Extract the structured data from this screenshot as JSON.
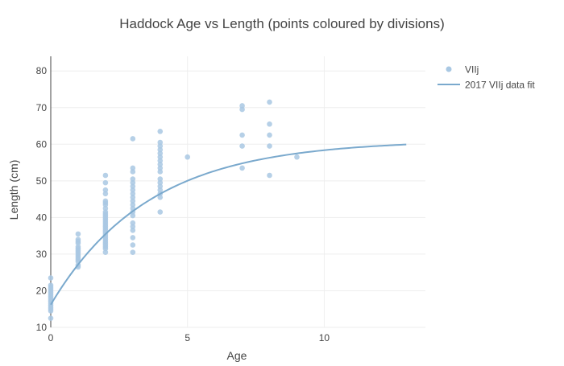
{
  "chart_data": {
    "type": "scatter",
    "title": "Haddock Age vs Length (points coloured by divisions)",
    "xlabel": "Age",
    "ylabel": "Length (cm)",
    "xlim": [
      0,
      13.7
    ],
    "ylim": [
      10,
      84
    ],
    "x_ticks": [
      0,
      5,
      10
    ],
    "y_ticks": [
      10,
      20,
      30,
      40,
      50,
      60,
      70,
      80
    ],
    "grid": true,
    "legend_position": "top-right",
    "colors": {
      "points": "#a9c8e3",
      "line": "#7aa9cd",
      "text": "#444444",
      "grid": "#eeeeee"
    },
    "series": [
      {
        "name": "VIIj",
        "kind": "scatter",
        "points": [
          [
            0,
            12.5
          ],
          [
            0,
            14.5
          ],
          [
            0,
            15
          ],
          [
            0,
            15.5
          ],
          [
            0,
            16
          ],
          [
            0,
            16.5
          ],
          [
            0,
            17
          ],
          [
            0,
            17.5
          ],
          [
            0,
            18
          ],
          [
            0,
            18.5
          ],
          [
            0,
            19
          ],
          [
            0,
            19.5
          ],
          [
            0,
            20
          ],
          [
            0,
            20.5
          ],
          [
            0,
            21
          ],
          [
            0,
            21.5
          ],
          [
            0,
            23.5
          ],
          [
            1,
            26.5
          ],
          [
            1,
            27
          ],
          [
            1,
            28
          ],
          [
            1,
            28.5
          ],
          [
            1,
            29
          ],
          [
            1,
            29.5
          ],
          [
            1,
            30
          ],
          [
            1,
            30.5
          ],
          [
            1,
            31
          ],
          [
            1,
            31.5
          ],
          [
            1,
            32
          ],
          [
            1,
            33
          ],
          [
            1,
            33.5
          ],
          [
            1,
            34
          ],
          [
            1,
            35.5
          ],
          [
            2,
            30.5
          ],
          [
            2,
            31.5
          ],
          [
            2,
            32
          ],
          [
            2,
            32.5
          ],
          [
            2,
            33
          ],
          [
            2,
            33.5
          ],
          [
            2,
            34
          ],
          [
            2,
            34.5
          ],
          [
            2,
            35
          ],
          [
            2,
            35.5
          ],
          [
            2,
            36
          ],
          [
            2,
            36.5
          ],
          [
            2,
            37
          ],
          [
            2,
            37.5
          ],
          [
            2,
            38
          ],
          [
            2,
            38.5
          ],
          [
            2,
            39
          ],
          [
            2,
            39.5
          ],
          [
            2,
            40
          ],
          [
            2,
            40.5
          ],
          [
            2,
            41
          ],
          [
            2,
            41.5
          ],
          [
            2,
            42.5
          ],
          [
            2,
            43.5
          ],
          [
            2,
            44
          ],
          [
            2,
            44.5
          ],
          [
            2,
            46.5
          ],
          [
            2,
            47.5
          ],
          [
            2,
            49.5
          ],
          [
            2,
            51.5
          ],
          [
            3,
            30.5
          ],
          [
            3,
            32.5
          ],
          [
            3,
            34.5
          ],
          [
            3,
            36.5
          ],
          [
            3,
            37.5
          ],
          [
            3,
            38.5
          ],
          [
            3,
            40.5
          ],
          [
            3,
            41.5
          ],
          [
            3,
            42.5
          ],
          [
            3,
            43.5
          ],
          [
            3,
            44.5
          ],
          [
            3,
            45.5
          ],
          [
            3,
            46.5
          ],
          [
            3,
            47.5
          ],
          [
            3,
            48.5
          ],
          [
            3,
            49.5
          ],
          [
            3,
            50.5
          ],
          [
            3,
            52.5
          ],
          [
            3,
            53.5
          ],
          [
            3,
            61.5
          ],
          [
            4,
            41.5
          ],
          [
            4,
            45.5
          ],
          [
            4,
            46.5
          ],
          [
            4,
            47.5
          ],
          [
            4,
            48.5
          ],
          [
            4,
            49.5
          ],
          [
            4,
            50.5
          ],
          [
            4,
            52.5
          ],
          [
            4,
            53.5
          ],
          [
            4,
            54.5
          ],
          [
            4,
            55.5
          ],
          [
            4,
            56.5
          ],
          [
            4,
            57.5
          ],
          [
            4,
            58.5
          ],
          [
            4,
            59.5
          ],
          [
            4,
            60.5
          ],
          [
            4,
            63.5
          ],
          [
            5,
            56.5
          ],
          [
            7,
            53.5
          ],
          [
            7,
            59.5
          ],
          [
            7,
            62.5
          ],
          [
            7,
            69.5
          ],
          [
            7,
            70.5
          ],
          [
            8,
            51.5
          ],
          [
            8,
            59.5
          ],
          [
            8,
            62.5
          ],
          [
            8,
            65.5
          ],
          [
            8,
            71.5
          ],
          [
            9,
            56.5
          ]
        ]
      },
      {
        "name": "2017 VIIj data fit",
        "kind": "line",
        "model": "von_bertalanffy",
        "params": {
          "Linf": 61.1,
          "k": 0.28,
          "t0": -1.1
        },
        "x_range": [
          0,
          13
        ]
      }
    ]
  }
}
